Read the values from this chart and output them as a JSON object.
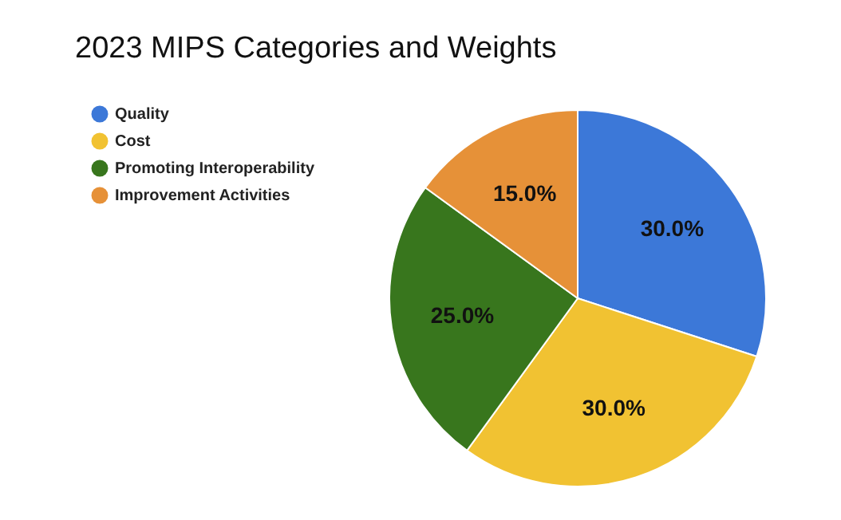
{
  "chart_data": {
    "type": "pie",
    "title": "2023 MIPS Categories and Weights",
    "categories": [
      "Quality",
      "Cost",
      "Promoting Interoperability",
      "Improvement Activities"
    ],
    "values": [
      30,
      30,
      25,
      15
    ],
    "value_labels": [
      "30.0%",
      "30.0%",
      "25.0%",
      "15.0%"
    ],
    "colors": [
      "#3c78d8",
      "#f1c232",
      "#38761d",
      "#e69138"
    ],
    "legend": "top left"
  }
}
